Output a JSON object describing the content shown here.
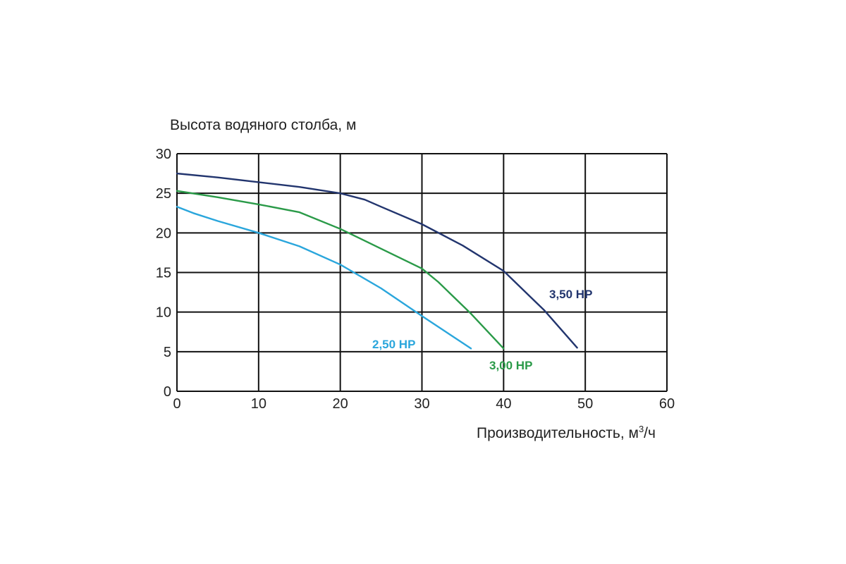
{
  "chart_data": {
    "type": "line",
    "ylabel": "Высота водяного столба, м",
    "xlabel_text": "Производительность, м",
    "xlabel_sup": "3",
    "xlabel_tail": "/ч",
    "xlim": [
      0,
      60
    ],
    "ylim": [
      0,
      30
    ],
    "xticks": [
      0,
      10,
      20,
      30,
      40,
      50,
      60
    ],
    "yticks": [
      0,
      5,
      10,
      15,
      20,
      25,
      30
    ],
    "grid": true,
    "series": [
      {
        "name": "2,50 HP",
        "color": "#2aa6dc",
        "x": [
          0,
          2,
          5,
          10,
          15,
          20,
          25,
          30,
          36
        ],
        "y": [
          23.3,
          22.5,
          21.5,
          20.0,
          18.3,
          16.0,
          13.0,
          9.5,
          5.4
        ]
      },
      {
        "name": "3,00 HP",
        "color": "#2a9a48",
        "x": [
          0,
          5,
          10,
          15,
          20,
          25,
          30,
          32,
          36,
          40
        ],
        "y": [
          25.3,
          24.5,
          23.6,
          22.6,
          20.5,
          18.0,
          15.5,
          13.8,
          9.8,
          5.4
        ]
      },
      {
        "name": "3,50 HP",
        "color": "#22356e",
        "x": [
          0,
          5,
          10,
          15,
          20,
          23,
          25,
          30,
          35,
          40,
          45,
          49
        ],
        "y": [
          27.5,
          27.0,
          26.4,
          25.8,
          25.0,
          24.2,
          23.3,
          21.1,
          18.4,
          15.2,
          10.2,
          5.5
        ]
      }
    ]
  }
}
